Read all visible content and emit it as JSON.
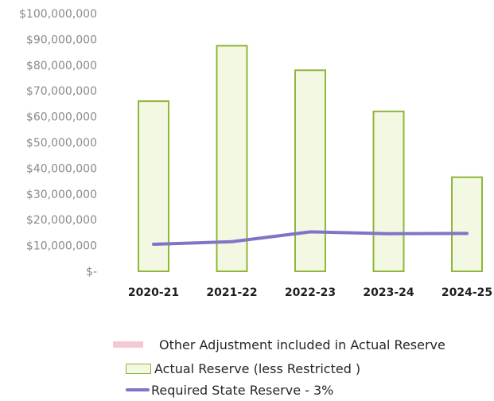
{
  "chart_data": {
    "type": "bar",
    "categories": [
      "2020-21",
      "2021-22",
      "2022-23",
      "2023-24",
      "2024-25"
    ],
    "series": [
      {
        "name": "Other Adjustment included in Actual Reserve",
        "type": "bar",
        "values": [
          0,
          0,
          0,
          0,
          0
        ],
        "color": "#f4c9d3"
      },
      {
        "name": "Actual Reserve (less Restricted )",
        "type": "bar",
        "values": [
          66000000,
          87500000,
          78000000,
          62000000,
          36500000
        ],
        "color": "#8fb63a",
        "fill": "#f3f8e3"
      },
      {
        "name": "Required State Reserve - 3%",
        "type": "line",
        "values": [
          10500000,
          11500000,
          15300000,
          14600000,
          14700000
        ],
        "color": "#8273c6"
      }
    ],
    "ylim": [
      0,
      100000000
    ],
    "yticks": [
      0,
      10000000,
      20000000,
      30000000,
      40000000,
      50000000,
      60000000,
      70000000,
      80000000,
      90000000,
      100000000
    ],
    "ytick_labels": [
      "$-",
      "$10,000,000",
      "$20,000,000",
      "$30,000,000",
      "$40,000,000",
      "$50,000,000",
      "$60,000,000",
      "$70,000,000",
      "$80,000,000",
      "$90,000,000",
      "$100,000,000"
    ],
    "title": "",
    "xlabel": "",
    "ylabel": "",
    "grid": false,
    "legend_position": "bottom"
  },
  "legend": {
    "other": "Other Adjustment included in Actual Reserve",
    "actual": "Actual Reserve (less Restricted )",
    "required": "Required State Reserve - 3%"
  }
}
